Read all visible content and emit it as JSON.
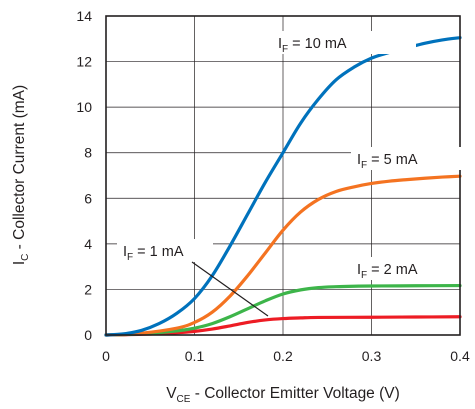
{
  "chart_data": {
    "type": "line",
    "title": "",
    "xlabel": {
      "main": "V",
      "sub": "CE",
      "rest": " - Collector Emitter Voltage (V)"
    },
    "ylabel": {
      "main": "I",
      "sub": "C",
      "rest": " - Collector Current (mA)"
    },
    "xlim": [
      0,
      0.4
    ],
    "ylim": [
      0,
      14
    ],
    "xticks": [
      0,
      0.1,
      0.2,
      0.3,
      0.4
    ],
    "xtick_labels": [
      "0",
      "0.1",
      "0.2",
      "0.3",
      "0.4"
    ],
    "yticks": [
      0,
      2,
      4,
      6,
      8,
      10,
      12,
      14
    ],
    "ytick_labels": [
      "0",
      "2",
      "4",
      "6",
      "8",
      "10",
      "12",
      "14"
    ],
    "grid": true,
    "legend": "none",
    "series": [
      {
        "color": "#0072bc",
        "label": {
          "main": "I",
          "sub": "F",
          "rest": " = 10 mA"
        },
        "x": [
          0,
          0.02,
          0.04,
          0.06,
          0.08,
          0.1,
          0.12,
          0.14,
          0.16,
          0.18,
          0.2,
          0.22,
          0.24,
          0.26,
          0.28,
          0.3,
          0.32,
          0.34,
          0.36,
          0.38,
          0.4
        ],
        "y": [
          0,
          0.05,
          0.2,
          0.5,
          0.95,
          1.6,
          2.6,
          3.9,
          5.3,
          6.7,
          8.0,
          9.3,
          10.35,
          11.2,
          11.75,
          12.15,
          12.4,
          12.6,
          12.8,
          12.95,
          13.05
        ]
      },
      {
        "color": "#f47321",
        "label": {
          "main": "I",
          "sub": "F",
          "rest": " = 5 mA"
        },
        "x": [
          0,
          0.04,
          0.08,
          0.1,
          0.12,
          0.14,
          0.16,
          0.18,
          0.2,
          0.22,
          0.24,
          0.26,
          0.28,
          0.3,
          0.32,
          0.34,
          0.36,
          0.38,
          0.4
        ],
        "y": [
          0,
          0.08,
          0.3,
          0.55,
          1.0,
          1.7,
          2.6,
          3.6,
          4.6,
          5.4,
          5.95,
          6.3,
          6.5,
          6.65,
          6.75,
          6.82,
          6.88,
          6.93,
          6.97
        ]
      },
      {
        "color": "#3db54a",
        "label": {
          "main": "I",
          "sub": "F",
          "rest": " = 2 mA"
        },
        "x": [
          0,
          0.04,
          0.08,
          0.1,
          0.12,
          0.14,
          0.16,
          0.18,
          0.2,
          0.22,
          0.24,
          0.26,
          0.28,
          0.3,
          0.35,
          0.4
        ],
        "y": [
          0,
          0.05,
          0.18,
          0.3,
          0.5,
          0.8,
          1.15,
          1.5,
          1.8,
          1.98,
          2.08,
          2.12,
          2.14,
          2.15,
          2.16,
          2.17
        ]
      },
      {
        "color": "#ed1c24",
        "label": {
          "main": "I",
          "sub": "F",
          "rest": " = 1 mA"
        },
        "x": [
          0,
          0.04,
          0.08,
          0.1,
          0.12,
          0.14,
          0.16,
          0.18,
          0.2,
          0.22,
          0.24,
          0.3,
          0.35,
          0.4
        ],
        "y": [
          0,
          0.03,
          0.1,
          0.16,
          0.26,
          0.4,
          0.55,
          0.66,
          0.72,
          0.75,
          0.77,
          0.78,
          0.79,
          0.8
        ]
      }
    ]
  }
}
